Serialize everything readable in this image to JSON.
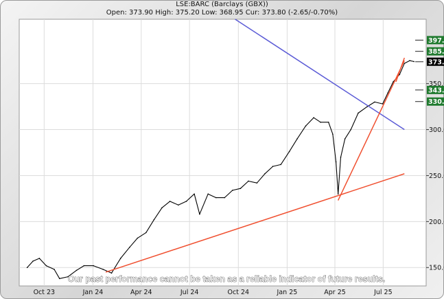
{
  "chart_data": {
    "type": "line",
    "title": "LSE:BARC (Barclays (GBX))",
    "subtitle": "Open: 373.90 High: 375.20 Low: 368.95 Cur: 373.80 (-2.65/-0.70%)",
    "x_tick_labels": [
      "Oct 23",
      "Jan 24",
      "Apr 24",
      "Jul 24",
      "Oct 24",
      "Jan 25",
      "Apr 25",
      "Jul 25"
    ],
    "y_ticks": [
      150,
      200,
      250,
      300,
      350
    ],
    "ylim": [
      130,
      420
    ],
    "grid": true,
    "price_series": {
      "x": [
        "2023-08-30",
        "2023-09-10",
        "2023-09-22",
        "2023-10-05",
        "2023-10-20",
        "2023-10-30",
        "2023-11-15",
        "2023-12-01",
        "2023-12-15",
        "2024-01-02",
        "2024-01-20",
        "2024-02-05",
        "2024-02-22",
        "2024-03-10",
        "2024-03-25",
        "2024-04-10",
        "2024-04-25",
        "2024-05-10",
        "2024-05-25",
        "2024-06-10",
        "2024-06-25",
        "2024-07-10",
        "2024-07-20",
        "2024-08-05",
        "2024-08-20",
        "2024-09-05",
        "2024-09-20",
        "2024-10-05",
        "2024-10-20",
        "2024-11-05",
        "2024-11-20",
        "2024-12-05",
        "2024-12-20",
        "2025-01-05",
        "2025-01-20",
        "2025-02-05",
        "2025-02-20",
        "2025-03-05",
        "2025-03-20",
        "2025-03-28",
        "2025-04-03",
        "2025-04-07",
        "2025-04-12",
        "2025-04-20",
        "2025-05-01",
        "2025-05-15",
        "2025-06-01",
        "2025-06-15",
        "2025-06-30",
        "2025-07-10",
        "2025-07-20",
        "2025-08-01",
        "2025-08-10",
        "2025-08-20",
        "2025-08-28"
      ],
      "y": [
        150,
        157,
        160,
        152,
        148,
        138,
        140,
        147,
        152,
        152,
        148,
        144,
        160,
        172,
        182,
        188,
        202,
        215,
        222,
        218,
        222,
        230,
        208,
        230,
        226,
        226,
        234,
        236,
        244,
        242,
        252,
        260,
        262,
        276,
        290,
        304,
        313,
        308,
        308,
        295,
        265,
        230,
        270,
        290,
        300,
        318,
        325,
        330,
        328,
        340,
        352,
        360,
        372,
        375,
        374
      ]
    },
    "trendlines": [
      {
        "color": "#5b5bd6",
        "x": [
          "2024-09-25",
          "2025-08-10"
        ],
        "y": [
          420,
          300
        ]
      },
      {
        "color": "#f05030",
        "x": [
          "2024-01-25",
          "2025-08-10"
        ],
        "y": [
          145,
          252
        ]
      },
      {
        "color": "#f05030",
        "x": [
          "2025-04-07",
          "2025-08-10"
        ],
        "y": [
          223,
          375
        ]
      },
      {
        "color": "#f05030",
        "x": [
          "2025-07-25",
          "2025-08-10"
        ],
        "y": [
          352,
          378
        ]
      }
    ],
    "price_tags": [
      {
        "label": "397.3",
        "value": 397.3,
        "color": "#1f7a2e"
      },
      {
        "label": "385.1",
        "value": 385.1,
        "color": "#1f7a2e"
      },
      {
        "label": "373.8",
        "value": 373.8,
        "color": "#000000"
      },
      {
        "label": "343.1",
        "value": 343.1,
        "color": "#1f7a2e"
      },
      {
        "label": "330.5",
        "value": 330.5,
        "color": "#1f7a2e"
      }
    ],
    "footer": "Our past performance cannot be taken as a reliable indicator of future results.",
    "x_domain": [
      "2023-08-15",
      "2025-09-20"
    ],
    "x_tick_dates": [
      "2023-10-01",
      "2024-01-01",
      "2024-04-01",
      "2024-07-01",
      "2024-10-01",
      "2025-01-01",
      "2025-04-01",
      "2025-07-01"
    ]
  }
}
